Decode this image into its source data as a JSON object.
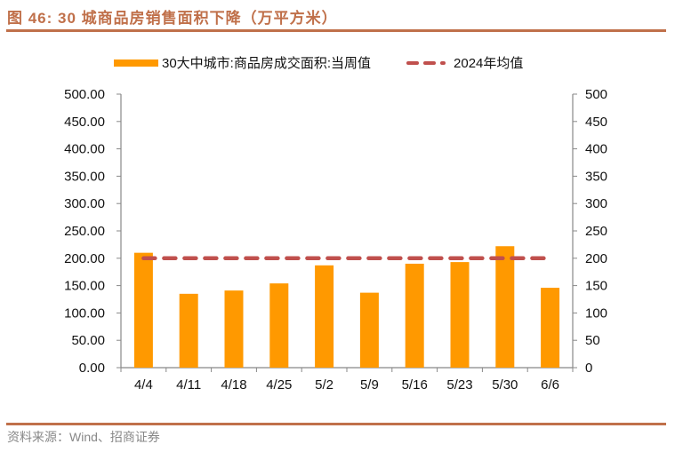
{
  "header": {
    "title": "图 46:  30 城商品房销售面积下降（万平方米）"
  },
  "legend": {
    "bar_label": "30大中城市:商品房成交面积:当周值",
    "line_label": "2024年均值"
  },
  "footer": {
    "source": "资料来源：Wind、招商证券"
  },
  "colors": {
    "bar": "#ff9900",
    "line": "#c0504d",
    "accent_rule": "#c0704a",
    "axis": "#888888"
  },
  "chart_data": {
    "type": "bar",
    "title": "30城商品房销售面积下降（万平方米）",
    "xlabel": "",
    "ylabel": "",
    "categories": [
      "4/4",
      "4/11",
      "4/18",
      "4/25",
      "5/2",
      "5/9",
      "5/16",
      "5/23",
      "5/30",
      "6/6"
    ],
    "series": [
      {
        "name": "30大中城市:商品房成交面积:当周值",
        "type": "bar",
        "axis": "left",
        "values": [
          210,
          135,
          141,
          154,
          187,
          137,
          190,
          193,
          222,
          146
        ]
      },
      {
        "name": "2024年均值",
        "type": "line",
        "style": "dashed",
        "axis": "right",
        "values": [
          200,
          200,
          200,
          200,
          200,
          200,
          200,
          200,
          200,
          200
        ]
      }
    ],
    "ylim": [
      0,
      500
    ],
    "y2lim": [
      0,
      500
    ],
    "left_ticks": [
      "0.00",
      "50.00",
      "100.00",
      "150.00",
      "200.00",
      "250.00",
      "300.00",
      "350.00",
      "400.00",
      "450.00",
      "500.00"
    ],
    "right_ticks": [
      "0",
      "50",
      "100",
      "150",
      "200",
      "250",
      "300",
      "350",
      "400",
      "450",
      "500"
    ],
    "grid": false,
    "legend_position": "top"
  }
}
